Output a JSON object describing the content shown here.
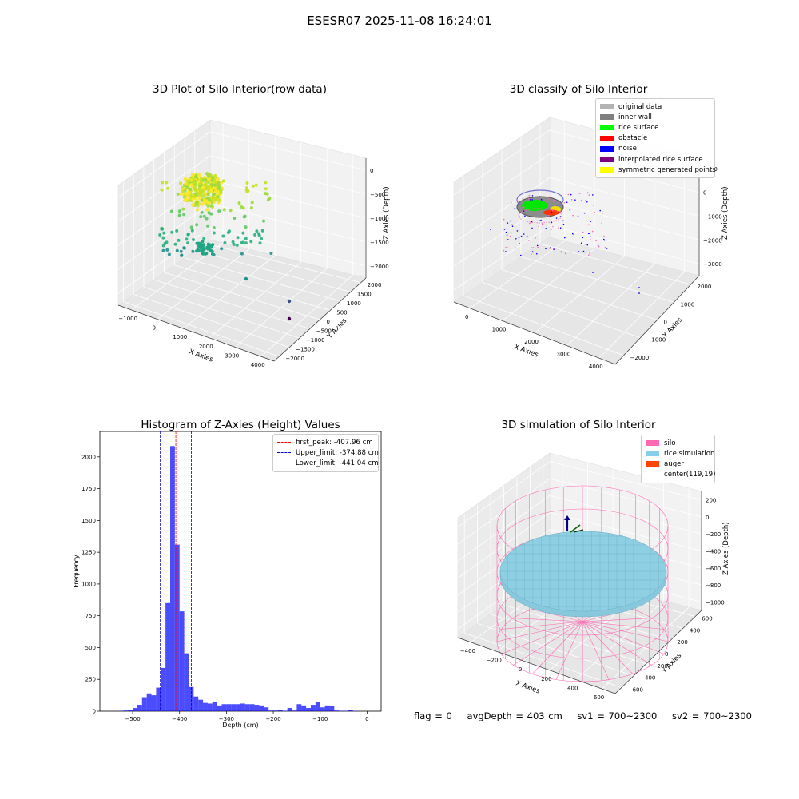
{
  "suptitle": "ESESR07 2025-11-08 16:24:01",
  "chart_data": [
    {
      "type": "scatter",
      "projection": "3d",
      "title": "3D Plot of Silo Interior(row data)",
      "xlabel": "X Axies",
      "ylabel": "Y Axies",
      "zlabel": "Z Axies (Depth)",
      "x_ticks": [
        "−1000",
        "0",
        "1000",
        "2000",
        "3000",
        "4000"
      ],
      "y_ticks": [
        "−2000",
        "−1500",
        "−1000",
        "−500",
        "0",
        "500",
        "1000",
        "1500",
        "2000"
      ],
      "z_ticks": [
        "0",
        "−500",
        "−1000",
        "−1500",
        "−2000"
      ],
      "xlim": [
        -1300,
        4200
      ],
      "ylim": [
        -2100,
        2100
      ],
      "zlim": [
        -2300,
        0
      ],
      "colormap": "viridis",
      "grid": true
    },
    {
      "type": "scatter",
      "projection": "3d",
      "title": "3D classify of Silo Interior",
      "xlabel": "X Axies",
      "ylabel": "Y Axies",
      "zlabel": "Z Axies (Depth)",
      "x_ticks": [
        "0",
        "1000",
        "2000",
        "3000",
        "4000"
      ],
      "y_ticks": [
        "−2000",
        "−1000",
        "0",
        "1000",
        "2000"
      ],
      "z_ticks": [
        "1000",
        "0",
        "−1000",
        "−2000",
        "−3000"
      ],
      "legend_position": "top-right",
      "legend": [
        {
          "label": "original data",
          "color": "#b3b3b3"
        },
        {
          "label": "inner wall",
          "color": "#808080"
        },
        {
          "label": "rice surface",
          "color": "#00ff00"
        },
        {
          "label": "obstacle",
          "color": "#ff0000"
        },
        {
          "label": "noise",
          "color": "#0000ff"
        },
        {
          "label": "interpolated rice surface",
          "color": "#800080"
        },
        {
          "label": "symmetric generated points",
          "color": "#ffff00"
        }
      ],
      "grid": true
    },
    {
      "type": "bar",
      "title": "Histogram of Z-Axies (Height) Values",
      "xlabel": "Depth (cm)",
      "ylabel": "Frequency",
      "xlim": [
        -570,
        30
      ],
      "ylim": [
        0,
        2200
      ],
      "x_ticks": [
        -500,
        -400,
        -300,
        -200,
        -100,
        0
      ],
      "y_ticks": [
        0,
        250,
        500,
        750,
        1000,
        1250,
        1500,
        1750,
        2000
      ],
      "bin_width": 10,
      "bar_color": "#0000ff",
      "bins": [
        {
          "x": -530,
          "count": 2
        },
        {
          "x": -520,
          "count": 5
        },
        {
          "x": -510,
          "count": 10
        },
        {
          "x": -500,
          "count": 25
        },
        {
          "x": -490,
          "count": 50
        },
        {
          "x": -480,
          "count": 110
        },
        {
          "x": -470,
          "count": 140
        },
        {
          "x": -460,
          "count": 125
        },
        {
          "x": -450,
          "count": 185
        },
        {
          "x": -440,
          "count": 340
        },
        {
          "x": -430,
          "count": 850
        },
        {
          "x": -420,
          "count": 2085
        },
        {
          "x": -410,
          "count": 1310
        },
        {
          "x": -400,
          "count": 785
        },
        {
          "x": -390,
          "count": 455
        },
        {
          "x": -380,
          "count": 190
        },
        {
          "x": -370,
          "count": 115
        },
        {
          "x": -360,
          "count": 90
        },
        {
          "x": -350,
          "count": 65
        },
        {
          "x": -340,
          "count": 60
        },
        {
          "x": -330,
          "count": 75
        },
        {
          "x": -320,
          "count": 45
        },
        {
          "x": -310,
          "count": 55
        },
        {
          "x": -300,
          "count": 55
        },
        {
          "x": -290,
          "count": 55
        },
        {
          "x": -280,
          "count": 55
        },
        {
          "x": -270,
          "count": 60
        },
        {
          "x": -260,
          "count": 55
        },
        {
          "x": -250,
          "count": 55
        },
        {
          "x": -240,
          "count": 50
        },
        {
          "x": -230,
          "count": 45
        },
        {
          "x": -220,
          "count": 30
        },
        {
          "x": -210,
          "count": 5
        },
        {
          "x": -200,
          "count": 5
        },
        {
          "x": -190,
          "count": 10
        },
        {
          "x": -180,
          "count": 3
        },
        {
          "x": -170,
          "count": 25
        },
        {
          "x": -160,
          "count": 5
        },
        {
          "x": -150,
          "count": 55
        },
        {
          "x": -140,
          "count": 45
        },
        {
          "x": -130,
          "count": 25
        },
        {
          "x": -120,
          "count": 50
        },
        {
          "x": -110,
          "count": 75
        },
        {
          "x": -100,
          "count": 30
        },
        {
          "x": -90,
          "count": 45
        },
        {
          "x": -80,
          "count": 40
        },
        {
          "x": -70,
          "count": 5
        },
        {
          "x": -60,
          "count": 3
        },
        {
          "x": -50,
          "count": 3
        },
        {
          "x": -40,
          "count": 10
        },
        {
          "x": -30,
          "count": 2
        }
      ],
      "vlines": [
        {
          "label": "first_peak: -407.96 cm",
          "x": -407.96,
          "color": "#ff0000"
        },
        {
          "label": "Upper_limit: -374.88 cm",
          "x": -374.88,
          "color": "#0000cc"
        },
        {
          "label": "Lower_limit: -441.04 cm",
          "x": -441.04,
          "color": "#0000cc"
        }
      ],
      "legend_position": "top-right"
    },
    {
      "type": "surface",
      "projection": "3d",
      "title": "3D simulation of Silo Interior",
      "xlabel": "X Axies",
      "ylabel": "Y Axies",
      "zlabel": "Z Axies (Depth)",
      "x_ticks": [
        "−400",
        "−200",
        "0",
        "200",
        "400",
        "600"
      ],
      "y_ticks": [
        "−600",
        "−400",
        "−200",
        "0",
        "200",
        "400",
        "600"
      ],
      "z_ticks": [
        "200",
        "0",
        "−200",
        "−400",
        "−600",
        "−800",
        "−1000"
      ],
      "legend_position": "top-right",
      "legend": [
        {
          "label": "silo",
          "color": "#ff69b4"
        },
        {
          "label": "rice simulation",
          "color": "#87ceeb"
        },
        {
          "label": "auger",
          "color": "#ff4500"
        },
        {
          "label": "center(119,19)",
          "color": "#ffffff"
        }
      ],
      "grid": true
    }
  ],
  "footer": {
    "flag": "flag = 0",
    "avg_depth": "avgDepth = 403 cm",
    "sv1": "sv1 = 700~2300",
    "sv2": "sv2 = 700~2300"
  }
}
